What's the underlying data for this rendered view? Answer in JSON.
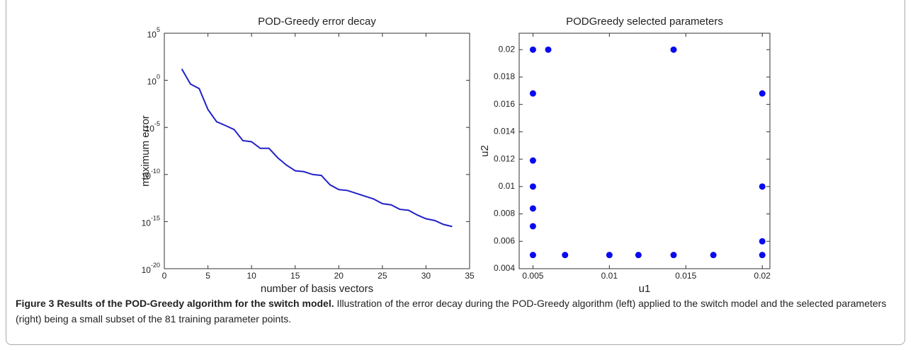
{
  "chart_data": [
    {
      "type": "line",
      "title": "POD-Greedy error decay",
      "xlabel": "number of basis vectors",
      "ylabel": "maximum error",
      "log_y": true,
      "grid": false,
      "x": [
        2,
        3,
        4,
        5,
        6,
        7,
        8,
        9,
        10,
        11,
        12,
        13,
        14,
        15,
        16,
        17,
        18,
        19,
        20,
        21,
        22,
        23,
        24,
        25,
        26,
        27,
        28,
        29,
        30,
        31,
        32,
        33
      ],
      "series": [
        {
          "name": "maximum error",
          "color": "#2121c8",
          "values": [
            16,
            0.4,
            0.13,
            0.0008,
            4e-05,
            1.6e-05,
            6e-06,
            4e-07,
            3e-07,
            6e-08,
            6e-08,
            6e-09,
            1e-09,
            2.5e-10,
            2e-10,
            1e-10,
            8e-11,
            8e-12,
            2.5e-12,
            2e-12,
            1e-12,
            5e-13,
            2.5e-13,
            8e-14,
            6e-14,
            2e-14,
            1.6e-14,
            5e-15,
            2e-15,
            1.3e-15,
            5e-16,
            3e-16
          ]
        }
      ],
      "xlim": [
        0,
        35
      ],
      "xticks": [
        0,
        5,
        10,
        15,
        20,
        25,
        30,
        35
      ],
      "ylim": [
        1e-20,
        100000.0
      ],
      "yticks": [
        {
          "value": 1e-20,
          "label": "10^-20"
        },
        {
          "value": 1e-15,
          "label": "10^-15"
        },
        {
          "value": 1e-10,
          "label": "10^-10"
        },
        {
          "value": 1e-05,
          "label": "10^-5"
        },
        {
          "value": 1,
          "label": "10^0"
        },
        {
          "value": 100000.0,
          "label": "10^5"
        }
      ]
    },
    {
      "type": "scatter",
      "title": "PODGreedy selected parameters",
      "xlabel": "u1",
      "ylabel": "u2",
      "grid": false,
      "series": [
        {
          "name": "selected parameters",
          "color": "#0a0af0",
          "x": [
            0.005,
            0.006,
            0.0142,
            0.005,
            0.02,
            0.005,
            0.005,
            0.02,
            0.005,
            0.005,
            0.02,
            0.005,
            0.0071,
            0.01,
            0.0119,
            0.0142,
            0.0168,
            0.02
          ],
          "values": [
            0.02,
            0.02,
            0.02,
            0.0168,
            0.0168,
            0.0119,
            0.01,
            0.01,
            0.0084,
            0.0071,
            0.006,
            0.005,
            0.005,
            0.005,
            0.005,
            0.005,
            0.005,
            0.005
          ]
        }
      ],
      "xlim": [
        0.0041,
        0.0205
      ],
      "xticks": [
        0.005,
        0.01,
        0.015,
        0.02
      ],
      "ylim": [
        0.004,
        0.0212
      ],
      "yticks": [
        0.004,
        0.006,
        0.008,
        0.01,
        0.012,
        0.014,
        0.016,
        0.018,
        0.02
      ]
    }
  ],
  "caption": {
    "label": "Figure 3 Results of the POD-Greedy algorithm for the switch model.",
    "text": "Illustration of the error decay during the POD-Greedy algorithm (left) applied to the switch model and the selected parameters (right) being a small subset of the 81 training parameter points."
  }
}
